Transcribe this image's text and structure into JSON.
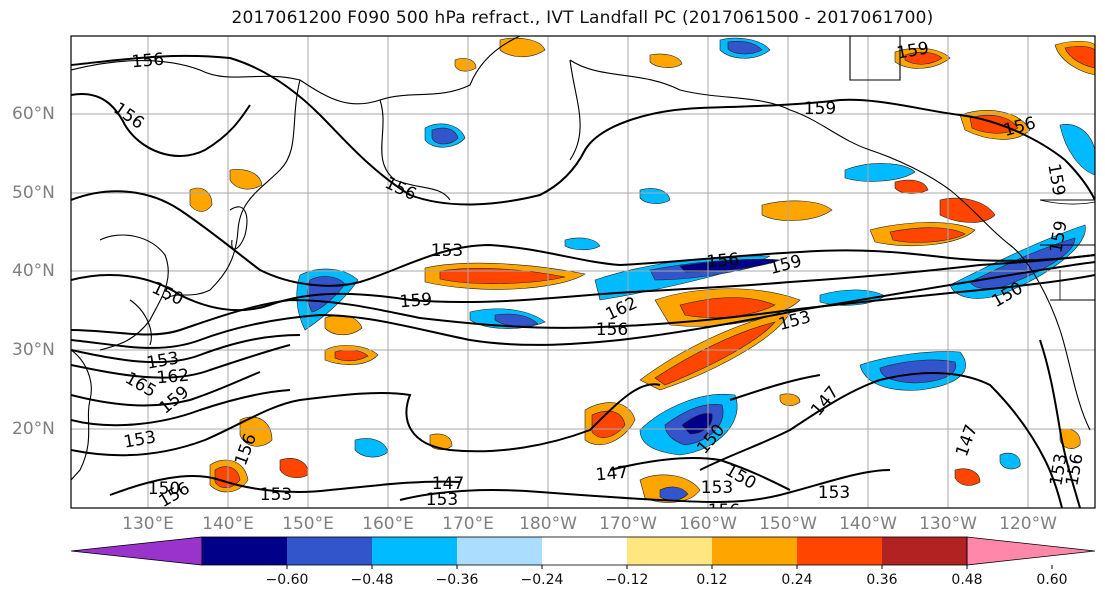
{
  "title": "2017061200 F090 500 hPa refract., IVT Landfall PC (2017061500 - 2017061700)",
  "map": {
    "lat_labels": [
      "60°N",
      "50°N",
      "40°N",
      "30°N",
      "20°N"
    ],
    "lon_labels": [
      "130°E",
      "140°E",
      "150°E",
      "160°E",
      "170°E",
      "180°W",
      "170°W",
      "160°W",
      "150°W",
      "140°W",
      "130°W",
      "120°W"
    ],
    "contour_labels": [
      "156",
      "156",
      "159",
      "159",
      "156",
      "156",
      "153",
      "156",
      "159",
      "150",
      "159",
      "162",
      "156",
      "153",
      "153",
      "162",
      "165",
      "159",
      "153",
      "150",
      "156",
      "147",
      "153",
      "147",
      "150",
      "156",
      "153",
      "150",
      "153",
      "147",
      "159",
      "150",
      "147",
      "153",
      "156",
      "159",
      "153",
      "156"
    ],
    "colors": {
      "neg_060": "#9933cc",
      "neg_048": "#000088",
      "neg_036": "#3355cc",
      "neg_024": "#00bbff",
      "neg_012": "#aaddff",
      "zero": "#ffffff",
      "pos_012": "#ffe680",
      "pos_024": "#ffa500",
      "pos_036": "#ff4500",
      "pos_048": "#b22222",
      "pos_060": "#ff88aa"
    }
  },
  "colorbar": {
    "ticks": [
      "−0.60",
      "−0.48",
      "−0.36",
      "−0.24",
      "−0.12",
      "0.12",
      "0.24",
      "0.36",
      "0.48",
      "0.60"
    ],
    "colors": [
      "#9933cc",
      "#000088",
      "#3355cc",
      "#00bbff",
      "#aaddff",
      "#ffffff",
      "#ffe680",
      "#ffa500",
      "#ff4500",
      "#b22222",
      "#ff88aa"
    ]
  }
}
